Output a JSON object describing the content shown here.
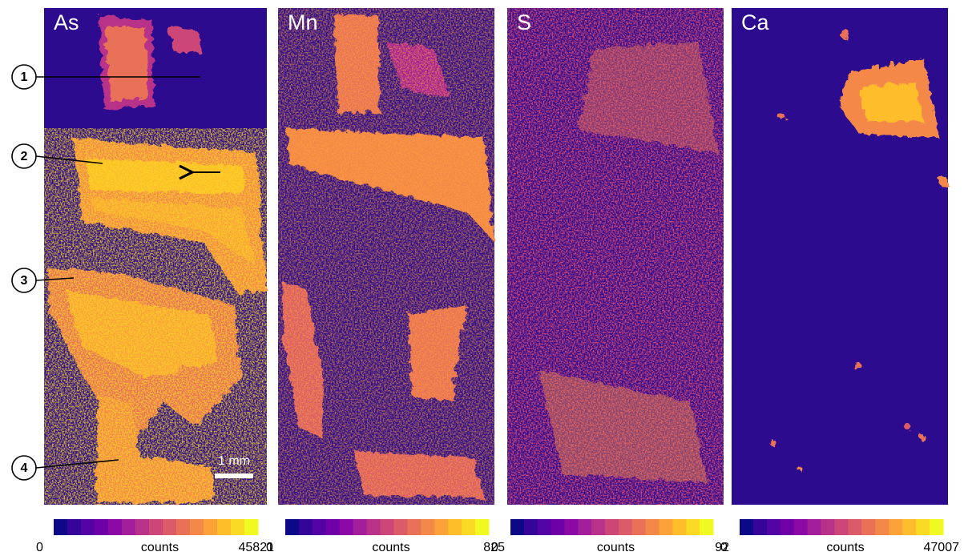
{
  "panels": [
    {
      "label": "As",
      "colorbar": {
        "min": 0,
        "label": "counts",
        "max": 45821
      }
    },
    {
      "label": "Mn",
      "colorbar": {
        "min": 0,
        "label": "counts",
        "max": 825
      }
    },
    {
      "label": "S",
      "colorbar": {
        "min": 0,
        "label": "counts",
        "max": 92
      }
    },
    {
      "label": "Ca",
      "colorbar": {
        "min": 0,
        "label": "counts",
        "max": 47007
      }
    }
  ],
  "markers": [
    {
      "label": "1"
    },
    {
      "label": "2"
    },
    {
      "label": "3"
    },
    {
      "label": "4"
    }
  ],
  "scale_bar": "1 mm"
}
